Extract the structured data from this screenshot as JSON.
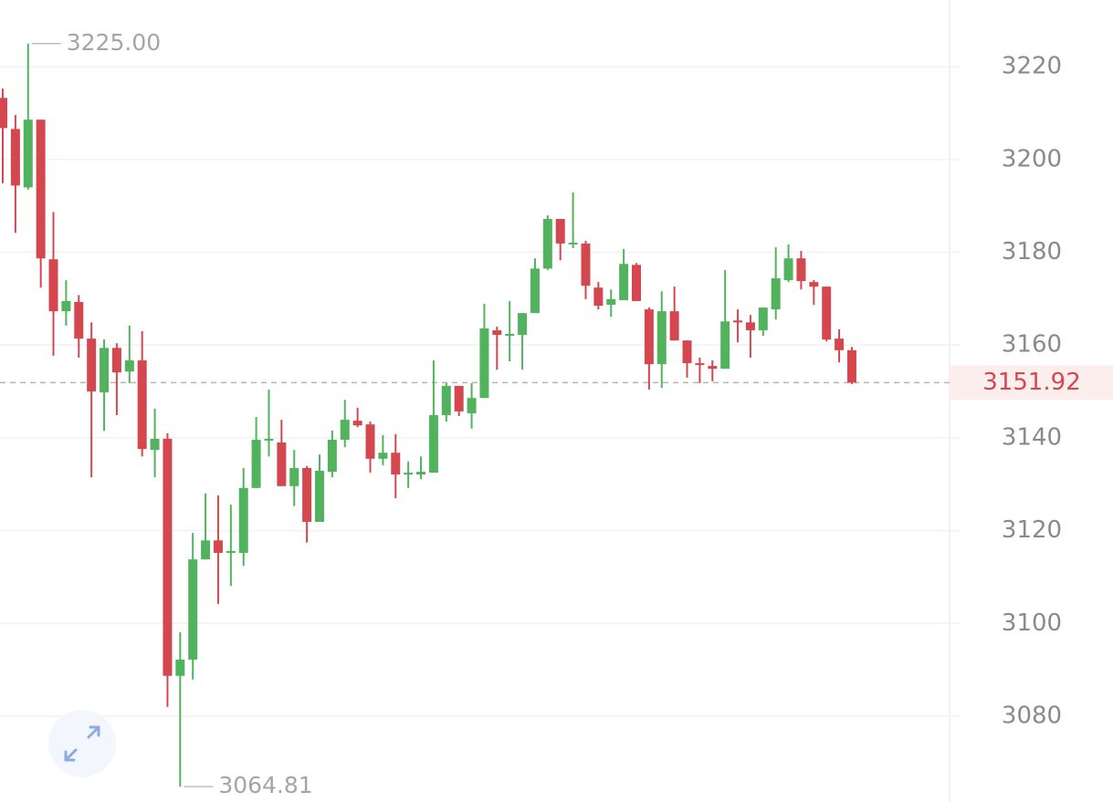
{
  "chart_data": {
    "type": "candlestick",
    "open": [
      3213.3,
      3206.6,
      3194.0,
      3208.6,
      3178.5,
      3167.3,
      3169.3,
      3161.4,
      3149.8,
      3159.4,
      3154.3,
      3156.7,
      3137.4,
      3139.8,
      3088.7,
      3092.2,
      3113.8,
      3117.9,
      3115.4,
      3115.2,
      3129.2,
      3139.5,
      3139.0,
      3129.6,
      3133.5,
      3121.9,
      3132.7,
      3139.6,
      3143.7,
      3142.9,
      3135.5,
      3136.8,
      3132.1,
      3132.1,
      3132.5,
      3144.9,
      3151.2,
      3145.3,
      3148.6,
      3163.2,
      3162.0,
      3162.2,
      3166.9,
      3176.5,
      3187.2,
      3181.7,
      3181.9,
      3172.4,
      3168.7,
      3169.7,
      3177.3,
      3167.7,
      3155.9,
      3167.3,
      3161.0,
      3156.1,
      3155.5,
      3154.9,
      3165.3,
      3164.9,
      3163.2,
      3167.7,
      3174.0,
      3178.7,
      3173.6,
      3172.6,
      3161.4,
      3158.9
    ],
    "high": [
      3215.3,
      3209.6,
      3225.0,
      3208.6,
      3188.7,
      3174.0,
      3170.8,
      3164.9,
      3161.2,
      3160.4,
      3164.2,
      3163.0,
      3146.3,
      3141.0,
      3098.1,
      3119.5,
      3128.0,
      3127.6,
      3125.6,
      3133.5,
      3144.5,
      3150.4,
      3143.9,
      3137.4,
      3133.9,
      3136.4,
      3141.6,
      3148.2,
      3146.5,
      3143.5,
      3140.6,
      3140.8,
      3134.9,
      3136.0,
      3156.7,
      3151.8,
      3151.2,
      3151.8,
      3168.9,
      3164.0,
      3169.5,
      3166.9,
      3178.7,
      3188.0,
      3187.2,
      3192.9,
      3182.5,
      3173.6,
      3172.0,
      3180.7,
      3177.7,
      3168.1,
      3171.6,
      3172.6,
      3161.0,
      3157.3,
      3156.7,
      3176.2,
      3167.7,
      3166.5,
      3168.1,
      3181.1,
      3181.7,
      3180.3,
      3174.0,
      3172.6,
      3163.4,
      3159.6
    ],
    "low": [
      3194.9,
      3184.2,
      3193.5,
      3172.4,
      3157.7,
      3164.2,
      3157.3,
      3131.5,
      3141.5,
      3144.9,
      3151.8,
      3136.0,
      3131.5,
      3082.0,
      3064.81,
      3087.9,
      3113.8,
      3104.2,
      3108.1,
      3112.4,
      3129.2,
      3136.0,
      3129.6,
      3125.3,
      3117.4,
      3121.9,
      3131.5,
      3138.0,
      3142.3,
      3132.5,
      3134.1,
      3127.0,
      3129.2,
      3131.1,
      3132.5,
      3143.5,
      3144.7,
      3142.0,
      3148.6,
      3154.7,
      3156.5,
      3154.7,
      3166.9,
      3176.2,
      3178.3,
      3180.9,
      3169.9,
      3167.7,
      3166.1,
      3169.7,
      3169.5,
      3150.4,
      3150.8,
      3161.0,
      3153.0,
      3151.8,
      3152.2,
      3154.9,
      3160.6,
      3157.3,
      3162.0,
      3165.5,
      3173.6,
      3172.0,
      3168.7,
      3160.8,
      3156.3,
      3151.6
    ],
    "close": [
      3206.8,
      3194.4,
      3208.6,
      3178.7,
      3167.3,
      3169.5,
      3161.4,
      3150.0,
      3159.4,
      3154.1,
      3156.7,
      3137.6,
      3139.8,
      3088.7,
      3092.2,
      3113.8,
      3117.9,
      3115.2,
      3115.6,
      3129.2,
      3139.6,
      3139.8,
      3129.6,
      3133.5,
      3121.9,
      3132.9,
      3139.6,
      3143.9,
      3142.7,
      3135.5,
      3136.8,
      3132.1,
      3132.5,
      3132.7,
      3144.9,
      3151.2,
      3145.7,
      3148.6,
      3163.6,
      3162.2,
      3162.4,
      3166.9,
      3176.5,
      3187.2,
      3181.9,
      3182.1,
      3172.8,
      3168.5,
      3169.9,
      3177.5,
      3169.5,
      3155.9,
      3167.3,
      3161.0,
      3156.1,
      3155.7,
      3154.9,
      3165.1,
      3164.9,
      3163.2,
      3168.1,
      3174.4,
      3178.7,
      3173.8,
      3172.6,
      3161.2,
      3158.9,
      3151.92
    ],
    "up_color": "#52b35e",
    "down_color": "#d5474f",
    "ylim": [
      3061.5,
      3234.4
    ],
    "yticks": [
      3080,
      3100,
      3120,
      3140,
      3160,
      3180,
      3200,
      3220
    ],
    "grid": true,
    "high_marker": {
      "value": 3225,
      "label": "3225.00"
    },
    "low_marker": 3064.81,
    "last_price": 3151.92
  }
}
